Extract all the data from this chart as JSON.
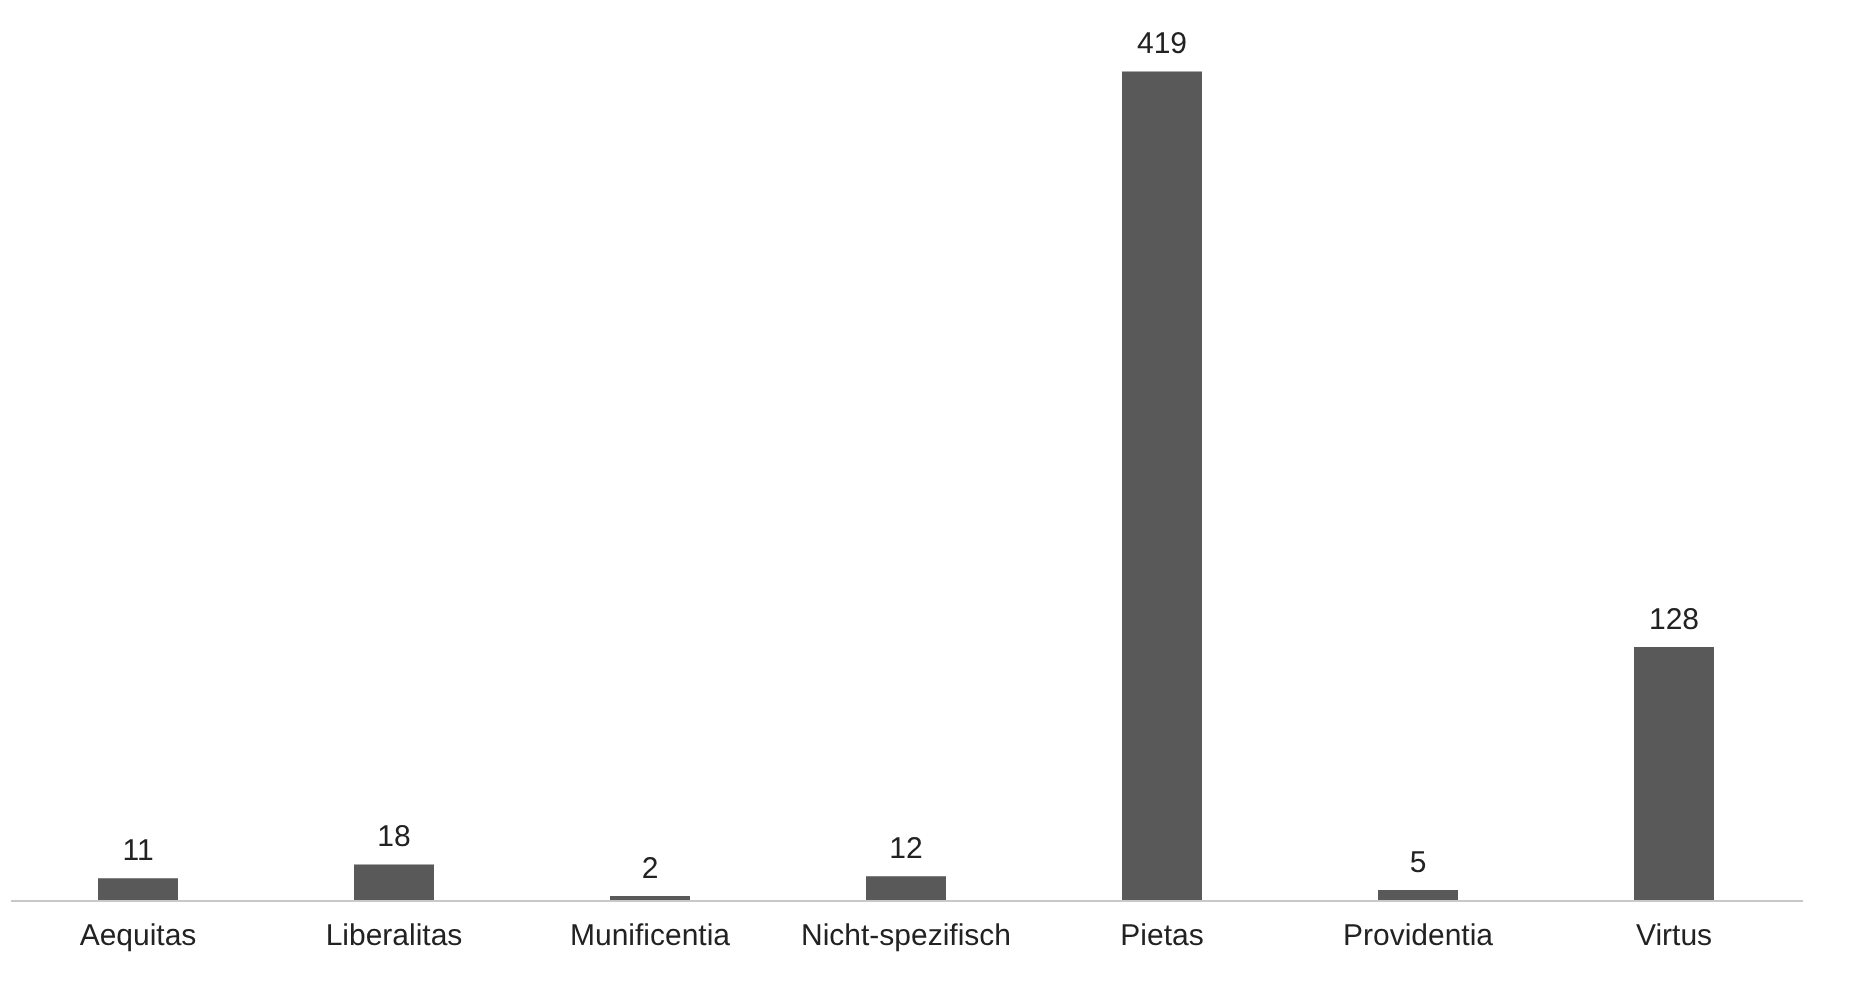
{
  "chart_data": {
    "type": "bar",
    "categories": [
      "Aequitas",
      "Liberalitas",
      "Munificentia",
      "Nicht-spezifisch",
      "Pietas",
      "Providentia",
      "Virtus"
    ],
    "values": [
      11,
      18,
      2,
      12,
      419,
      5,
      128
    ],
    "color": "#595959",
    "data_labels": true
  }
}
